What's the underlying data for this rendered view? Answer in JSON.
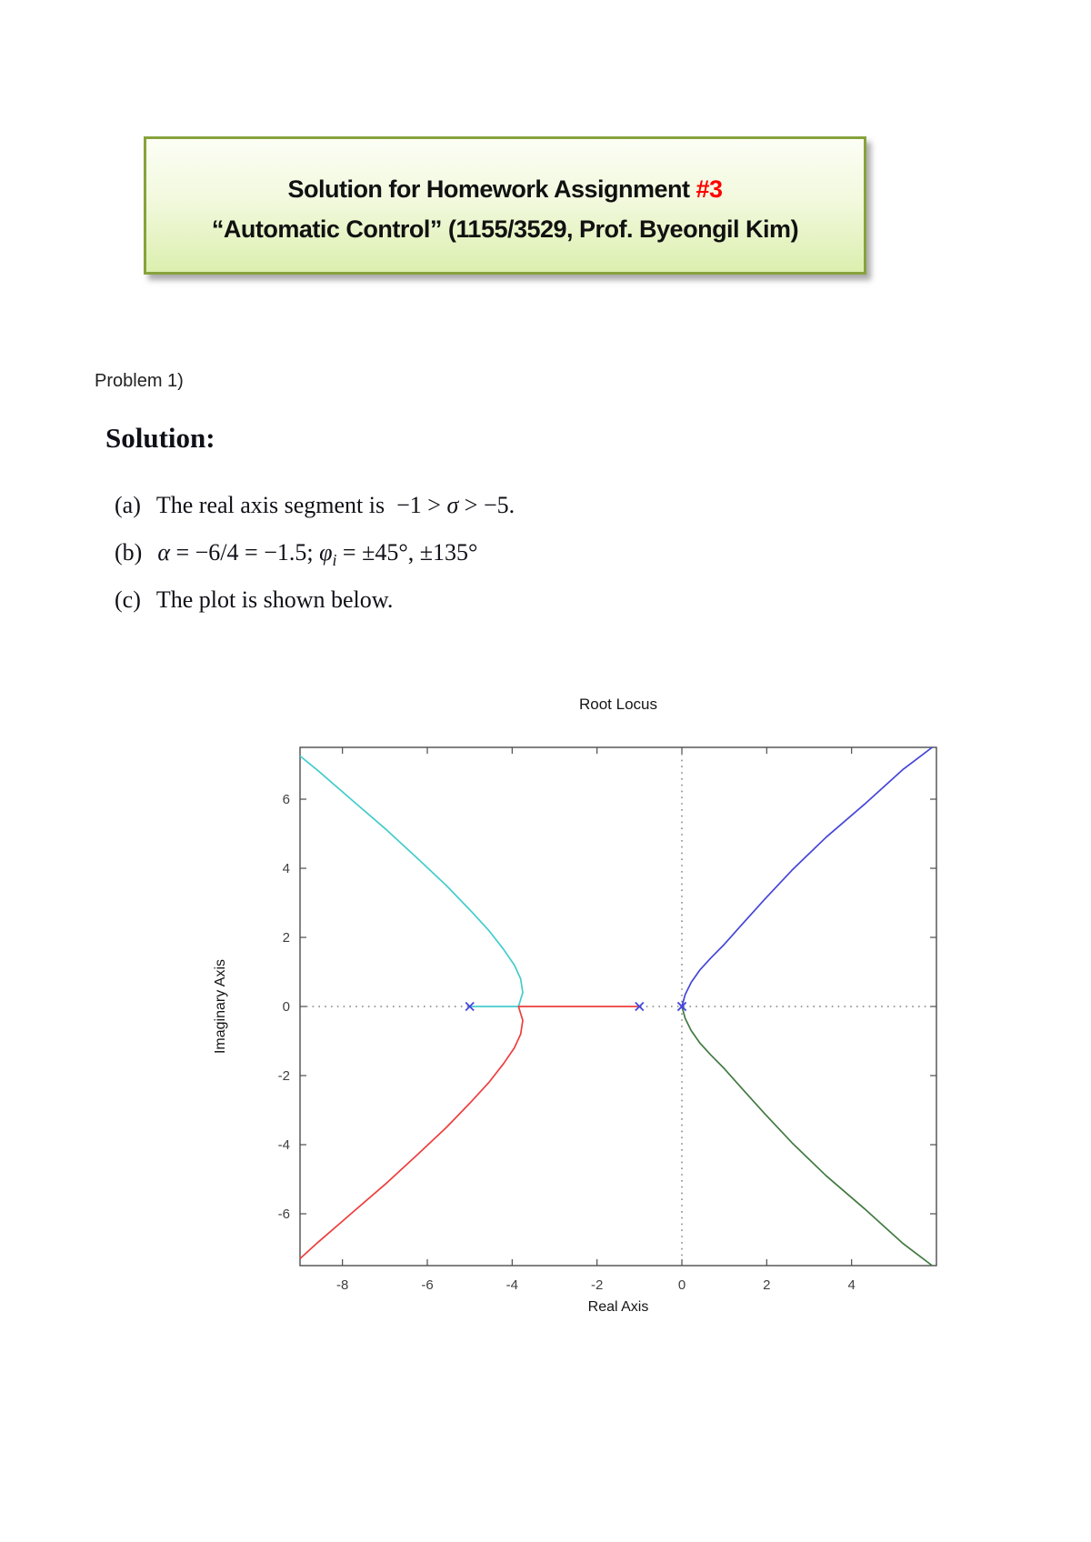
{
  "page": {
    "background": "#ffffff"
  },
  "header_box": {
    "title_prefix": "Solution for Homework Assignment ",
    "title_number": "#3",
    "subtitle": "“Automatic Control” (1155/3529, Prof. Byeongil Kim)",
    "border_color": "#87a33c",
    "fill_top": "#fcfef5",
    "fill_bottom": "#dcefaf",
    "text_color": "#111111",
    "number_color": "#fe0000"
  },
  "problem_label": "Problem 1)",
  "solution": {
    "heading": "Solution:",
    "items": [
      {
        "label": "(a)",
        "segments": [
          {
            "t": "The real axis segment is "
          },
          {
            "t": "−1 > "
          },
          {
            "t": "σ",
            "i": true
          },
          {
            "t": " > −5."
          }
        ]
      },
      {
        "label": "(b)",
        "segments": [
          {
            "t": "α",
            "i": true
          },
          {
            "t": " = −6/4 = −1.5; "
          },
          {
            "t": "φ",
            "i": true
          },
          {
            "t": "i",
            "i": true,
            "sub": true
          },
          {
            "t": " = ±45°, ±135°"
          }
        ]
      },
      {
        "label": "(c)",
        "segments": [
          {
            "t": "The plot is shown below."
          }
        ]
      }
    ]
  },
  "chart_data": {
    "type": "line",
    "title": "Root Locus",
    "xlabel": "Real Axis",
    "ylabel": "Imaginary Axis",
    "xlim": [
      -9,
      6
    ],
    "ylim": [
      -7.5,
      7.5
    ],
    "xticks": [
      -8,
      -6,
      -4,
      -2,
      0,
      2,
      4
    ],
    "yticks": [
      -6,
      -4,
      -2,
      0,
      2,
      4,
      6
    ],
    "grid": false,
    "legend": false,
    "axes_color": "#4d4d4d",
    "tick_label_color": "#3f3f3f",
    "label_color": "#151515",
    "reference_lines": [
      {
        "axis": "vertical-at-x",
        "value": 0,
        "style": "dotted",
        "color": "#404040"
      },
      {
        "axis": "horizontal-at-y",
        "value": 0,
        "style": "dotted",
        "color": "#404040"
      }
    ],
    "poles": {
      "marker": "x",
      "color": "#4747e0",
      "points": [
        [
          -5,
          0
        ],
        [
          -1,
          0
        ],
        [
          0,
          0
        ],
        [
          0,
          0
        ]
      ]
    },
    "series": [
      {
        "name": "branch-from-pole-minus5-upper-left",
        "color": "#44cccc",
        "points": [
          [
            -5,
            0
          ],
          [
            -3.85,
            0
          ],
          [
            -3.75,
            0.4
          ],
          [
            -3.8,
            0.8
          ],
          [
            -3.95,
            1.2
          ],
          [
            -4.2,
            1.65
          ],
          [
            -4.55,
            2.2
          ],
          [
            -5.0,
            2.8
          ],
          [
            -5.55,
            3.5
          ],
          [
            -6.2,
            4.25
          ],
          [
            -6.95,
            5.1
          ],
          [
            -7.8,
            6.0
          ],
          [
            -8.6,
            6.85
          ],
          [
            -9,
            7.25
          ]
        ]
      },
      {
        "name": "branch-from-pole-minus1-lower-left",
        "color": "#ee3e3e",
        "points": [
          [
            -1,
            0
          ],
          [
            -3.85,
            0
          ],
          [
            -3.75,
            -0.4
          ],
          [
            -3.8,
            -0.8
          ],
          [
            -3.95,
            -1.2
          ],
          [
            -4.2,
            -1.65
          ],
          [
            -4.55,
            -2.2
          ],
          [
            -5.0,
            -2.8
          ],
          [
            -5.55,
            -3.5
          ],
          [
            -6.2,
            -4.25
          ],
          [
            -6.95,
            -5.1
          ],
          [
            -7.8,
            -6.0
          ],
          [
            -8.6,
            -6.85
          ],
          [
            -9,
            -7.3
          ]
        ]
      },
      {
        "name": "branch-from-origin-upper-right",
        "color": "#4545d8",
        "points": [
          [
            0,
            0
          ],
          [
            0.08,
            0.35
          ],
          [
            0.22,
            0.7
          ],
          [
            0.42,
            1.05
          ],
          [
            0.68,
            1.4
          ],
          [
            1.0,
            1.8
          ],
          [
            1.4,
            2.35
          ],
          [
            1.95,
            3.1
          ],
          [
            2.6,
            3.95
          ],
          [
            3.4,
            4.9
          ],
          [
            4.3,
            5.85
          ],
          [
            5.2,
            6.85
          ],
          [
            5.9,
            7.5
          ]
        ]
      },
      {
        "name": "branch-from-origin-lower-right",
        "color": "#417a41",
        "points": [
          [
            0,
            0
          ],
          [
            0.08,
            -0.35
          ],
          [
            0.22,
            -0.7
          ],
          [
            0.42,
            -1.05
          ],
          [
            0.68,
            -1.4
          ],
          [
            1.0,
            -1.8
          ],
          [
            1.4,
            -2.35
          ],
          [
            1.95,
            -3.1
          ],
          [
            2.6,
            -3.95
          ],
          [
            3.4,
            -4.9
          ],
          [
            4.3,
            -5.85
          ],
          [
            5.2,
            -6.85
          ],
          [
            5.9,
            -7.5
          ]
        ]
      }
    ]
  }
}
